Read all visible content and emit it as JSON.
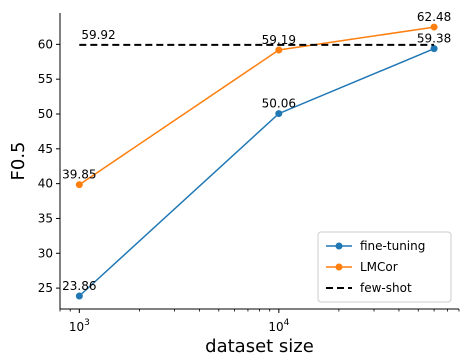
{
  "chart_data": {
    "type": "line",
    "xlabel": "dataset size",
    "ylabel": "F0.5",
    "x_scale": "log",
    "xlim": [
      800,
      80000
    ],
    "ylim": [
      22,
      64.5
    ],
    "x_ticks": [
      {
        "value": 1000,
        "base": "10",
        "exp": "3"
      },
      {
        "value": 10000,
        "base": "10",
        "exp": "4"
      }
    ],
    "y_ticks": [
      25,
      30,
      35,
      40,
      45,
      50,
      55,
      60
    ],
    "grid": false,
    "legend_position": "bottom-right",
    "series": [
      {
        "name": "fine-tuning",
        "color": "#1f77b4",
        "style": "solid-marker",
        "x": [
          1000,
          10000,
          60000
        ],
        "y": [
          23.86,
          50.06,
          59.38
        ],
        "labels": [
          "23.86",
          "50.06",
          "59.38"
        ]
      },
      {
        "name": "LMCor",
        "color": "#ff7f0e",
        "style": "solid-marker",
        "x": [
          1000,
          10000,
          60000
        ],
        "y": [
          39.85,
          59.19,
          62.48
        ],
        "labels": [
          "39.85",
          "59.19",
          "62.48"
        ]
      },
      {
        "name": "few-shot",
        "color": "#000000",
        "style": "dashed",
        "x": [
          1000,
          60000
        ],
        "y": [
          59.92,
          59.92
        ],
        "labels": [
          "59.92"
        ]
      }
    ]
  }
}
